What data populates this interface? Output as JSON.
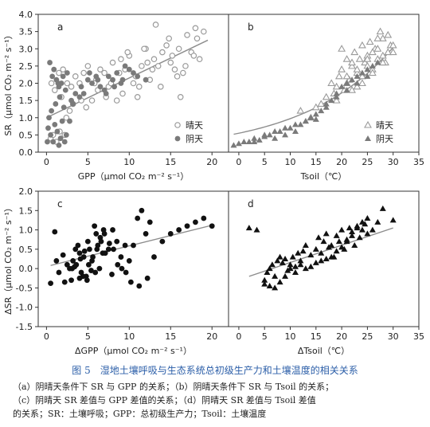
{
  "caption": {
    "title": "图 5　湿地土壤呼吸与生态系统总初级生产力和土壤温度的相关关系",
    "lines": [
      "（a）阴晴天条件下 SR 与 GPP 的关系；（b）阴晴天条件下 SR 与 Tsoil 的关系；",
      "（c）阴晴天 SR 差值与 GPP 差值的关系；（d）阴晴天 SR 差值与 Tsoil 差值",
      "的关系；SR：土壤呼吸；GPP：总初级生产力；Tsoil：土壤温度"
    ]
  },
  "colors": {
    "sunny": "#9a9a9a",
    "cloudy": "#7a7a7a",
    "delta": "#111111",
    "fit": "#8c8c8c",
    "frame": "#333333"
  },
  "chart_data": [
    {
      "panel": "a",
      "type": "scatter",
      "xlabel": "GPP（μmol CO₂ m⁻² s⁻¹）",
      "ylabel": "SR（μmol CO₂ m⁻² s⁻¹）",
      "xlim": [
        -1,
        22
      ],
      "ylim": [
        0,
        4
      ],
      "xticks": [
        0,
        5,
        10,
        15,
        20
      ],
      "yticks": [
        0,
        0.5,
        1.0,
        1.5,
        2.0,
        2.5,
        3.0,
        3.5,
        4.0
      ],
      "yticklabels": [
        "0.0",
        "0.5",
        "1.0",
        "1.5",
        "2.0",
        "2.5",
        "3.0",
        "3.5",
        "4.0"
      ],
      "legend": {
        "position": "bottom-right",
        "entries": [
          "晴天",
          "阴天"
        ]
      },
      "fit": {
        "x": [
          0,
          19.5
        ],
        "y": [
          1.0,
          3.25
        ]
      },
      "series": [
        {
          "name": "晴天",
          "marker": "open-circle",
          "x": [
            0.5,
            0.8,
            1.2,
            1.5,
            2.0,
            2.5,
            1.0,
            1.8,
            2.2,
            3.0,
            3.5,
            4.0,
            4.5,
            5.0,
            5.5,
            6.0,
            6.5,
            7.0,
            7.5,
            8.0,
            8.5,
            9.0,
            9.5,
            10.0,
            10.5,
            11.0,
            11.5,
            12.0,
            12.5,
            13.0,
            13.5,
            14.0,
            14.5,
            15.0,
            15.5,
            16.0,
            16.5,
            17.0,
            17.5,
            18.0,
            18.5,
            19.0,
            3.2,
            4.8,
            6.2,
            7.8,
            9.2,
            10.8,
            12.2,
            13.8,
            15.2,
            16.8,
            2.8,
            5.8,
            8.8,
            11.8,
            14.8,
            17.8,
            1.6,
            0.6,
            2.4,
            4.2,
            7.2,
            9.8,
            12.8,
            15.8,
            18.2,
            11.2,
            13.2,
            16.2
          ],
          "y": [
            0.4,
            0.5,
            0.3,
            2.3,
            2.4,
            2.0,
            1.8,
            1.6,
            0.5,
            1.9,
            2.2,
            2.0,
            2.3,
            2.5,
            1.5,
            2.1,
            2.4,
            2.3,
            1.9,
            2.6,
            1.5,
            2.7,
            2.4,
            2.8,
            2.0,
            1.6,
            2.5,
            3.0,
            2.1,
            2.7,
            2.5,
            2.9,
            3.1,
            2.6,
            2.4,
            3.0,
            2.3,
            3.4,
            2.9,
            3.6,
            2.7,
            3.5,
            1.4,
            1.3,
            1.8,
            2.0,
            1.7,
            2.2,
            2.6,
            1.9,
            2.8,
            2.5,
            1.2,
            2.0,
            2.3,
            3.0,
            3.3,
            2.8,
            0.6,
            2.0,
            1.0,
            1.5,
            1.6,
            2.9,
            2.4,
            2.2,
            3.3,
            1.9,
            3.7,
            1.6
          ]
        },
        {
          "name": "阴天",
          "marker": "filled-circle",
          "x": [
            0.2,
            0.5,
            0.8,
            1.0,
            1.3,
            1.5,
            1.8,
            2.0,
            2.3,
            2.5,
            0.3,
            0.6,
            1.1,
            1.6,
            2.1,
            2.8,
            3.0,
            3.5,
            4.0,
            4.5,
            5.0,
            5.5,
            6.0,
            6.5,
            7.0,
            7.5,
            8.0,
            8.5,
            9.0,
            9.5,
            10.0,
            11.0,
            12.0,
            0.4,
            0.9,
            1.4,
            1.9,
            2.4,
            0.7,
            1.2,
            1.7,
            2.2,
            3.2,
            4.2,
            5.2,
            6.2,
            7.2,
            8.2,
            9.2,
            10.5,
            0.1,
            1.5
          ],
          "y": [
            0.7,
            0.5,
            0.3,
            0.8,
            0.6,
            1.9,
            2.0,
            2.2,
            1.8,
            2.3,
            1.0,
            1.2,
            1.4,
            1.6,
            1.3,
            0.9,
            1.5,
            1.7,
            1.6,
            1.7,
            2.1,
            2.0,
            2.2,
            1.9,
            1.8,
            2.2,
            2.1,
            2.3,
            2.0,
            2.5,
            2.4,
            2.2,
            2.1,
            2.6,
            2.4,
            2.0,
            0.9,
            0.5,
            2.2,
            2.1,
            0.4,
            0.3,
            1.4,
            1.9,
            2.3,
            2.1,
            1.7,
            1.9,
            2.1,
            2.3,
            0.3,
            0.2
          ]
        }
      ]
    },
    {
      "panel": "b",
      "type": "scatter",
      "xlabel": "Tsoil（℃）",
      "ylabel": "",
      "xlim": [
        -2,
        35
      ],
      "ylim": [
        0,
        4
      ],
      "xticks": [
        0,
        5,
        10,
        15,
        20,
        25,
        30,
        35
      ],
      "yticks": [],
      "legend": {
        "position": "bottom-right",
        "entries": [
          "晴天",
          "阴天"
        ]
      },
      "fit": {
        "curve": "exponential",
        "a": 0.55,
        "b": 0.057,
        "xrange": [
          -1,
          30
        ]
      },
      "series": [
        {
          "name": "晴天",
          "marker": "open-triangle",
          "x": [
            12,
            14,
            15,
            16,
            17,
            18,
            18.5,
            19,
            19.5,
            20,
            20.5,
            21,
            21.5,
            22,
            22.5,
            23,
            23.5,
            24,
            24.5,
            25,
            25.5,
            26,
            26.5,
            27,
            27.5,
            28,
            28.5,
            29,
            29.5,
            30,
            20,
            21,
            22,
            23,
            24,
            25,
            26,
            27,
            28,
            22,
            24,
            26,
            28,
            19,
            21,
            23,
            25,
            27,
            29,
            30
          ],
          "y": [
            1.2,
            1.0,
            1.3,
            1.4,
            1.6,
            2.0,
            1.7,
            1.5,
            2.2,
            2.4,
            1.8,
            2.7,
            2.1,
            2.5,
            2.9,
            2.3,
            2.7,
            3.1,
            2.6,
            2.8,
            3.2,
            2.4,
            3.0,
            2.7,
            3.5,
            3.3,
            2.6,
            2.9,
            3.1,
            3.1,
            3.0,
            2.0,
            2.6,
            1.9,
            2.2,
            2.5,
            2.9,
            3.3,
            2.6,
            1.8,
            2.0,
            2.3,
            2.8,
            1.9,
            2.2,
            2.4,
            2.7,
            3.0,
            3.4,
            2.9
          ]
        },
        {
          "name": "阴天",
          "marker": "filled-triangle",
          "x": [
            -1,
            0,
            1,
            2,
            3,
            4,
            5,
            6,
            7,
            8,
            9,
            10,
            11,
            12,
            13,
            14,
            15,
            16,
            17,
            18,
            19,
            20,
            21,
            22,
            23,
            24,
            25,
            26,
            27,
            3,
            5,
            7,
            9,
            11,
            13,
            15,
            17,
            19,
            21,
            23,
            25
          ],
          "y": [
            0.2,
            0.25,
            0.3,
            0.3,
            0.4,
            0.35,
            0.45,
            0.5,
            0.4,
            0.6,
            0.5,
            0.7,
            0.6,
            0.8,
            0.9,
            1.0,
            0.95,
            1.2,
            1.3,
            1.5,
            1.7,
            1.9,
            2.0,
            2.1,
            2.2,
            2.3,
            2.4,
            2.5,
            2.6,
            0.3,
            0.5,
            0.6,
            0.7,
            0.8,
            0.9,
            1.1,
            1.4,
            1.6,
            1.8,
            2.0,
            2.2
          ]
        }
      ]
    },
    {
      "panel": "c",
      "type": "scatter",
      "xlabel": "ΔGPP（μmol CO₂ m⁻² s⁻¹）",
      "ylabel": "ΔSR（μmol CO₂ m⁻² s⁻¹）",
      "xlim": [
        -1,
        22
      ],
      "ylim": [
        -1.5,
        2.0
      ],
      "xticks": [
        0,
        5,
        10,
        15,
        20
      ],
      "yticks": [
        -1.5,
        -1.0,
        -0.5,
        0,
        0.5,
        1.0,
        1.5,
        2.0
      ],
      "yticklabels": [
        "-1.5",
        "-1.0",
        "-0.5",
        "0.0",
        "0.5",
        "1.0",
        "1.5",
        "2.0"
      ],
      "fit": {
        "x": [
          0.5,
          20
        ],
        "y": [
          0.08,
          1.12
        ]
      },
      "series": [
        {
          "name": "",
          "marker": "filled-circle",
          "x": [
            0.5,
            1.0,
            1.5,
            2.0,
            2.5,
            2.8,
            3.0,
            3.2,
            3.5,
            3.8,
            4.0,
            4.2,
            4.5,
            4.8,
            5.0,
            5.2,
            5.5,
            5.8,
            6.0,
            6.2,
            6.5,
            6.8,
            7.0,
            7.5,
            8.0,
            8.5,
            9.0,
            9.5,
            10.0,
            10.5,
            11.0,
            11.5,
            12.0,
            12.5,
            13.0,
            14.0,
            15.0,
            16.0,
            17.0,
            18.0,
            19.0,
            20.0,
            3.1,
            3.6,
            4.1,
            4.6,
            5.1,
            5.6,
            6.1,
            6.6,
            7.1,
            7.6,
            8.1,
            8.6,
            9.1,
            9.6,
            4.4,
            5.4,
            6.4,
            3.4,
            4.0,
            4.9,
            5.9,
            7.9,
            10.2,
            11.2,
            12.2,
            2.2,
            1.2,
            6.9
          ],
          "y": [
            -0.38,
            0.95,
            -0.1,
            0.35,
            0.1,
            0.0,
            -0.3,
            0.2,
            0.5,
            0.6,
            0.4,
            -0.1,
            0.3,
            -0.2,
            0.7,
            0.5,
            0.2,
            1.1,
            0.9,
            0.6,
            0.8,
            0.4,
            0.9,
            0.5,
            1.0,
            0.7,
            0.3,
            0.6,
            0.2,
            0.6,
            1.3,
            1.5,
            0.9,
            1.2,
            0.3,
            0.7,
            0.9,
            1.0,
            1.1,
            1.2,
            1.3,
            1.1,
            0.0,
            0.1,
            0.25,
            0.45,
            0.1,
            0.3,
            0.5,
            0.7,
            0.4,
            0.65,
            0.5,
            0.1,
            0.0,
            -0.1,
            -0.2,
            -0.05,
            0.0,
            0.05,
            -0.25,
            -0.3,
            -0.1,
            -0.15,
            -0.35,
            -0.45,
            -0.25,
            -0.35,
            0.2,
            1.0
          ]
        }
      ]
    },
    {
      "panel": "d",
      "type": "scatter",
      "xlabel": "ΔTsoil（℃）",
      "ylabel": "",
      "xlim": [
        -2,
        35
      ],
      "ylim": [
        -1.5,
        2.0
      ],
      "xticks": [
        0,
        5,
        10,
        15,
        20,
        25,
        30,
        35
      ],
      "yticks": [],
      "fit": {
        "x": [
          2,
          30
        ],
        "y": [
          -0.2,
          1.05
        ]
      },
      "series": [
        {
          "name": "",
          "marker": "filled-triangle",
          "x": [
            2,
            3.5,
            5,
            5.5,
            6,
            6.5,
            7,
            7.5,
            8,
            8.5,
            9,
            9.5,
            10,
            10.5,
            11,
            11.5,
            12,
            12.5,
            13,
            14,
            15,
            15.5,
            16,
            16.5,
            17,
            17.5,
            18,
            18.5,
            19,
            19.5,
            20,
            20.5,
            21,
            21.5,
            22,
            22.5,
            23,
            23.5,
            24,
            24.5,
            25,
            26,
            27,
            28,
            30,
            5,
            6,
            7,
            8,
            9,
            10,
            11,
            12,
            13,
            14,
            15,
            16,
            17,
            18,
            19,
            20,
            21,
            22,
            23,
            24,
            25
          ],
          "y": [
            1.05,
            1.0,
            -0.3,
            -0.1,
            0.0,
            0.1,
            -0.2,
            0.2,
            0.3,
            0.15,
            0.25,
            -0.05,
            0.1,
            0.3,
            0.05,
            0.4,
            0.2,
            0.45,
            0.6,
            0.35,
            0.5,
            0.8,
            0.4,
            0.7,
            0.9,
            0.55,
            0.6,
            0.3,
            0.85,
            0.7,
            1.0,
            0.5,
            0.75,
            1.05,
            0.95,
            0.6,
            1.1,
            0.8,
            1.0,
            1.15,
            0.9,
            1.0,
            1.2,
            1.55,
            1.25,
            -0.4,
            -0.45,
            -0.5,
            -0.35,
            -0.2,
            0.0,
            -0.1,
            0.1,
            0.0,
            0.05,
            0.15,
            0.2,
            0.25,
            0.3,
            0.45,
            0.55,
            0.7,
            0.85,
            1.05,
            1.2,
            1.3
          ]
        }
      ]
    }
  ]
}
